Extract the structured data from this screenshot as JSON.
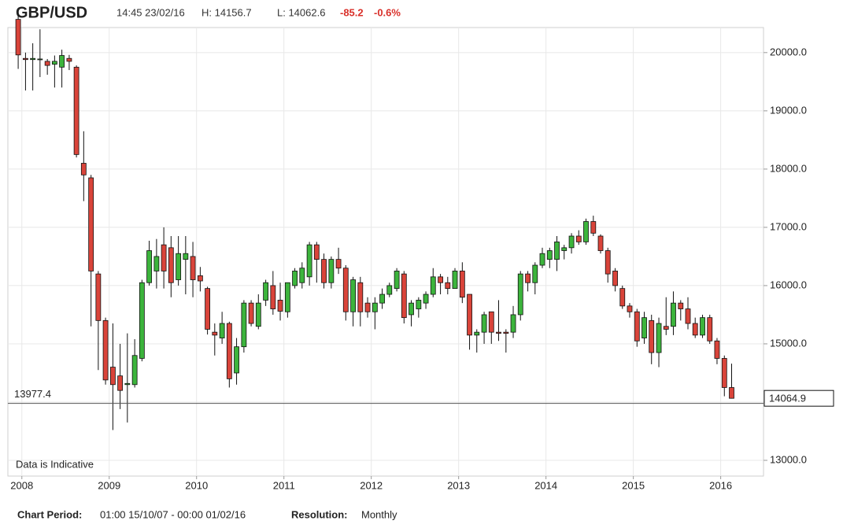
{
  "chart_data": {
    "type": "candlestick",
    "title": "GBP/USD",
    "timestamp": "14:45 23/02/16",
    "high_label": "H: 14156.7",
    "low_label": "L: 14062.6",
    "change": "-85.2",
    "change_percent": "-0.6%",
    "annotation": "Data is Indicative",
    "footer": {
      "period_label": "Chart Period:",
      "period": "01:00 15/10/07 - 00:00 01/02/16",
      "resolution_label": "Resolution:",
      "resolution": "Monthly"
    },
    "up_color": "#3cb43c",
    "down_color": "#d9443a",
    "grid": true,
    "xlim": [
      2007.84,
      2016.49
    ],
    "xticks": [
      2008,
      2009,
      2010,
      2011,
      2012,
      2013,
      2014,
      2015,
      2016
    ],
    "ylim": [
      12730,
      20430
    ],
    "yticks": [
      {
        "value": 13000,
        "label": "13000.0"
      },
      {
        "value": 14000,
        "label": "14000.0"
      },
      {
        "value": 15000,
        "label": "15000.0"
      },
      {
        "value": 16000,
        "label": "16000.0"
      },
      {
        "value": 17000,
        "label": "17000.0"
      },
      {
        "value": 18000,
        "label": "18000.0"
      },
      {
        "value": 19000,
        "label": "19000.0"
      },
      {
        "value": 20000,
        "label": "20000.0"
      }
    ],
    "reference_line": 13977.4,
    "last_price": 14064.9,
    "x": [
      2007.958,
      2008.042,
      2008.125,
      2008.208,
      2008.292,
      2008.375,
      2008.458,
      2008.542,
      2008.625,
      2008.708,
      2008.792,
      2008.875,
      2008.958,
      2009.042,
      2009.125,
      2009.208,
      2009.292,
      2009.375,
      2009.458,
      2009.542,
      2009.625,
      2009.708,
      2009.792,
      2009.875,
      2009.958,
      2010.042,
      2010.125,
      2010.208,
      2010.292,
      2010.375,
      2010.458,
      2010.542,
      2010.625,
      2010.708,
      2010.792,
      2010.875,
      2010.958,
      2011.042,
      2011.125,
      2011.208,
      2011.292,
      2011.375,
      2011.458,
      2011.542,
      2011.625,
      2011.708,
      2011.792,
      2011.875,
      2011.958,
      2012.042,
      2012.125,
      2012.208,
      2012.292,
      2012.375,
      2012.458,
      2012.542,
      2012.625,
      2012.708,
      2012.792,
      2012.875,
      2012.958,
      2013.042,
      2013.125,
      2013.208,
      2013.292,
      2013.375,
      2013.458,
      2013.542,
      2013.625,
      2013.708,
      2013.792,
      2013.875,
      2013.958,
      2014.042,
      2014.125,
      2014.208,
      2014.292,
      2014.375,
      2014.458,
      2014.542,
      2014.625,
      2014.708,
      2014.792,
      2014.875,
      2014.958,
      2015.042,
      2015.125,
      2015.208,
      2015.292,
      2015.375,
      2015.458,
      2015.542,
      2015.625,
      2015.708,
      2015.792,
      2015.875,
      2015.958,
      2016.042,
      2016.125
    ],
    "open": [
      20570,
      19900,
      19880,
      19880,
      19850,
      19800,
      19750,
      19900,
      19750,
      18100,
      17850,
      16200,
      15400,
      14600,
      14450,
      14300,
      14300,
      14750,
      16050,
      16250,
      16700,
      16650,
      16100,
      16450,
      16500,
      16170,
      15950,
      15200,
      15100,
      15350,
      14500,
      14950,
      15700,
      15300,
      15750,
      16000,
      15750,
      15550,
      16000,
      16050,
      16150,
      16700,
      16450,
      16050,
      16450,
      16300,
      15550,
      16050,
      15700,
      15550,
      15700,
      15850,
      15950,
      16200,
      15500,
      15600,
      15700,
      15850,
      16150,
      16050,
      15950,
      16250,
      15850,
      15150,
      15200,
      15550,
      15200,
      15200,
      15200,
      15500,
      16200,
      16050,
      16350,
      16450,
      16450,
      16600,
      16650,
      16850,
      16750,
      17100,
      16850,
      16600,
      16250,
      15950,
      15650,
      15550,
      15100,
      15400,
      14850,
      15300,
      15300,
      15700,
      15600,
      15350,
      15150,
      15450,
      15050,
      14750,
      14250
    ],
    "high": [
      20650,
      20000,
      20160,
      20400,
      19890,
      19950,
      20050,
      19960,
      19780,
      18650,
      17900,
      16250,
      15450,
      15350,
      15000,
      15180,
      15080,
      16100,
      16770,
      16800,
      17000,
      16850,
      16850,
      16850,
      16750,
      16320,
      15980,
      15350,
      15550,
      15380,
      15100,
      15750,
      15750,
      15850,
      16100,
      16250,
      16050,
      16050,
      16300,
      16400,
      16750,
      16750,
      16550,
      16500,
      16650,
      16350,
      16150,
      16150,
      15800,
      15800,
      15950,
      16050,
      16300,
      16250,
      15750,
      15800,
      15900,
      16300,
      16200,
      16150,
      16300,
      16400,
      15850,
      15250,
      15550,
      15550,
      15750,
      15250,
      15650,
      16250,
      16250,
      16400,
      16650,
      16650,
      16850,
      16700,
      16900,
      16950,
      17150,
      17200,
      16880,
      16650,
      16300,
      16000,
      15700,
      15600,
      15550,
      15500,
      15450,
      15800,
      15900,
      15750,
      15800,
      15450,
      15500,
      15500,
      15100,
      14800,
      14660
    ],
    "low": [
      19720,
      19350,
      19350,
      19580,
      19620,
      19400,
      19400,
      19700,
      18200,
      17450,
      15300,
      14550,
      14300,
      13520,
      13880,
      13650,
      14250,
      14700,
      16000,
      15950,
      15950,
      15800,
      16000,
      15850,
      15800,
      15900,
      15160,
      14800,
      15000,
      14250,
      14300,
      14850,
      15300,
      15250,
      15650,
      15500,
      15400,
      15450,
      15950,
      15950,
      16000,
      16050,
      15950,
      15950,
      16200,
      15400,
      15300,
      15300,
      15450,
      15250,
      15600,
      15800,
      15900,
      15350,
      15300,
      15450,
      15600,
      15800,
      15850,
      15850,
      15950,
      15700,
      14900,
      14850,
      15000,
      15000,
      15050,
      14850,
      15100,
      15400,
      15900,
      15850,
      16300,
      16300,
      16250,
      16450,
      16550,
      16700,
      16700,
      16850,
      16550,
      16050,
      15900,
      15600,
      15450,
      14950,
      15000,
      14650,
      14600,
      15150,
      15150,
      15400,
      15250,
      15100,
      15100,
      15000,
      14650,
      14100,
      14060
    ],
    "close": [
      19960,
      19880,
      19900,
      19890,
      19780,
      19850,
      19950,
      19850,
      18250,
      17900,
      16250,
      15400,
      14380,
      14300,
      14200,
      14320,
      14800,
      16050,
      16600,
      16500,
      16250,
      16050,
      16550,
      16550,
      16100,
      16080,
      15250,
      15150,
      15350,
      14400,
      14950,
      15700,
      15350,
      15700,
      16050,
      15600,
      15560,
      16050,
      16250,
      16300,
      16700,
      16450,
      16050,
      16450,
      16300,
      15550,
      16100,
      15550,
      15550,
      15700,
      15850,
      16000,
      16250,
      15450,
      15700,
      15750,
      15850,
      16150,
      16050,
      15950,
      16250,
      15800,
      15150,
      15200,
      15500,
      15200,
      15180,
      15180,
      15500,
      16200,
      16050,
      16350,
      16550,
      16600,
      16750,
      16650,
      16850,
      16750,
      17100,
      16900,
      16600,
      16200,
      16000,
      15650,
      15550,
      15050,
      15450,
      14850,
      15350,
      15250,
      15700,
      15600,
      15350,
      15150,
      15450,
      15050,
      14750,
      14250,
      14065
    ]
  }
}
